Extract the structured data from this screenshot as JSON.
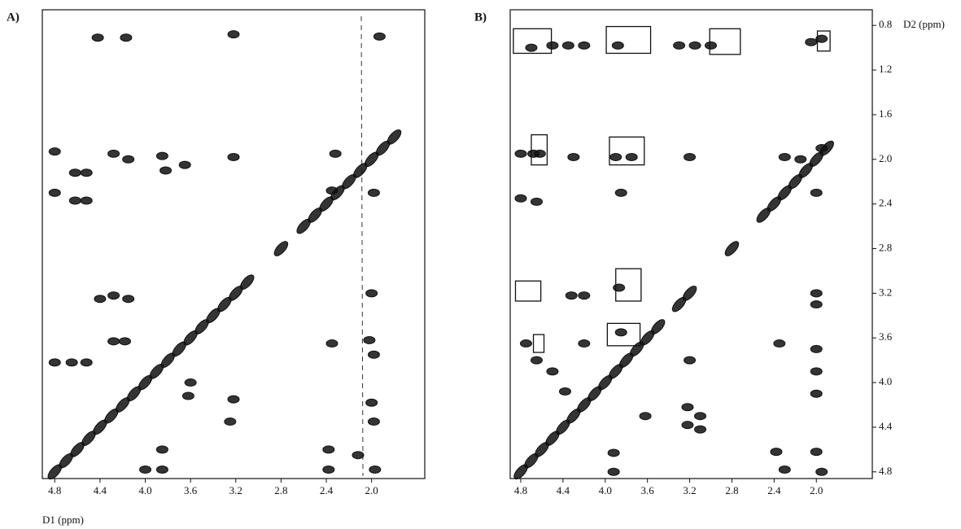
{
  "chart_data": [
    {
      "type": "scatter",
      "title": "A)",
      "x_label": "D1 (ppm)",
      "color": "#111111",
      "xlim": [
        4.91,
        1.53
      ],
      "ylim": [
        0.66,
        4.86
      ],
      "xticks": [
        4.8,
        4.4,
        {
          "value": 4,
          "label": "4.0"
        },
        3.6,
        3.2,
        2.8,
        2.4,
        {
          "value": 2,
          "label": "2.0"
        }
      ],
      "x": [
        4.8,
        4.7,
        4.6,
        4.5,
        4.4,
        4.3,
        4.2,
        4.1,
        4.0,
        3.9,
        3.8,
        3.7,
        3.6,
        3.5,
        3.4,
        3.3,
        3.2,
        3.1,
        2.8,
        2.6,
        2.5,
        2.4,
        2.3,
        2.2,
        2.1,
        2.0,
        1.9,
        1.8,
        4.42,
        4.17,
        3.22,
        1.93,
        4.8,
        4.62,
        4.52,
        4.28,
        4.15,
        3.85,
        3.82,
        3.65,
        3.22,
        2.32,
        4.8,
        4.62,
        4.52,
        2.35,
        1.98,
        4.4,
        4.28,
        4.15,
        2.0,
        4.28,
        4.18,
        2.35,
        2.02,
        1.98,
        4.8,
        4.65,
        4.52,
        3.6,
        3.62,
        3.22,
        3.25,
        2.0,
        1.98,
        3.85,
        3.85,
        4.0,
        2.38,
        2.38,
        2.12,
        1.97
      ],
      "values": [
        4.8,
        4.7,
        4.6,
        4.5,
        4.4,
        4.3,
        4.2,
        4.1,
        4.0,
        3.9,
        3.8,
        3.7,
        3.6,
        3.5,
        3.4,
        3.3,
        3.2,
        3.1,
        2.8,
        2.6,
        2.5,
        2.4,
        2.3,
        2.2,
        2.1,
        2.0,
        1.9,
        1.8,
        0.91,
        0.91,
        0.88,
        0.9,
        1.93,
        2.12,
        2.12,
        1.95,
        2.0,
        1.97,
        2.1,
        2.05,
        1.98,
        1.95,
        2.3,
        2.37,
        2.37,
        2.28,
        2.3,
        3.25,
        3.22,
        3.25,
        3.2,
        3.63,
        3.63,
        3.65,
        3.62,
        3.75,
        3.82,
        3.82,
        3.82,
        4.0,
        4.12,
        4.15,
        4.35,
        4.18,
        4.35,
        4.6,
        4.78,
        4.78,
        4.6,
        4.78,
        4.65,
        4.78
      ]
    },
    {
      "type": "scatter",
      "title": "B)",
      "y_label": "D2 (ppm)",
      "color": "#111111",
      "xlim": [
        4.9,
        1.47
      ],
      "ylim": [
        0.66,
        4.86
      ],
      "xticks": [
        4.8,
        4.4,
        {
          "value": 4,
          "label": "4.0"
        },
        3.6,
        3.2,
        2.8,
        2.4,
        {
          "value": 2,
          "label": "2.0"
        }
      ],
      "yticks": [
        0.8,
        1.2,
        1.6,
        {
          "value": 2,
          "label": "2.0"
        },
        2.4,
        2.8,
        3.2,
        3.6,
        {
          "value": 4,
          "label": "4.0"
        },
        4.4,
        4.8
      ],
      "x": [
        4.8,
        4.7,
        4.6,
        4.5,
        4.4,
        4.3,
        4.2,
        4.1,
        4.0,
        3.9,
        3.8,
        3.7,
        3.6,
        3.5,
        3.3,
        3.2,
        2.8,
        2.5,
        2.4,
        2.3,
        2.2,
        2.1,
        2.0,
        1.9,
        4.7,
        4.5,
        4.35,
        4.2,
        3.88,
        3.3,
        3.15,
        3.0,
        2.05,
        1.95,
        4.8,
        4.68,
        4.62,
        4.3,
        3.9,
        3.75,
        3.2,
        2.3,
        2.15,
        1.95,
        4.8,
        4.65,
        3.85,
        2.0,
        4.32,
        4.2,
        3.87,
        2.0,
        2.0,
        4.75,
        4.65,
        4.2,
        3.85,
        2.35,
        2.0,
        2.0,
        3.2,
        4.5,
        4.38,
        3.62,
        3.22,
        3.22,
        3.1,
        3.1,
        2.0,
        3.92,
        3.92,
        2.38,
        2.3,
        2.0,
        1.95
      ],
      "values": [
        4.8,
        4.7,
        4.6,
        4.5,
        4.4,
        4.3,
        4.2,
        4.1,
        4.0,
        3.9,
        3.8,
        3.7,
        3.6,
        3.5,
        3.3,
        3.2,
        2.8,
        2.5,
        2.4,
        2.3,
        2.2,
        2.1,
        2.0,
        1.9,
        1.0,
        0.98,
        0.98,
        0.98,
        0.98,
        0.98,
        0.98,
        0.98,
        0.95,
        0.92,
        1.95,
        1.95,
        1.95,
        1.98,
        1.98,
        1.98,
        1.98,
        1.98,
        2.0,
        1.9,
        2.35,
        2.38,
        2.3,
        2.3,
        3.22,
        3.22,
        3.15,
        3.2,
        3.3,
        3.65,
        3.8,
        3.65,
        3.55,
        3.65,
        3.7,
        3.9,
        3.8,
        3.9,
        4.08,
        4.3,
        4.22,
        4.38,
        4.3,
        4.42,
        4.1,
        4.63,
        4.8,
        4.62,
        4.78,
        4.62,
        4.8
      ],
      "boxes": [
        {
          "x": [
            4.87,
            4.51
          ],
          "y": [
            0.83,
            1.05
          ]
        },
        {
          "x": [
            3.99,
            3.57
          ],
          "y": [
            0.81,
            1.05
          ]
        },
        {
          "x": [
            3.01,
            2.72
          ],
          "y": [
            0.83,
            1.06
          ]
        },
        {
          "x": [
            1.99,
            1.87
          ],
          "y": [
            0.85,
            1.03
          ]
        },
        {
          "x": [
            4.7,
            4.55
          ],
          "y": [
            1.78,
            2.05
          ]
        },
        {
          "x": [
            3.96,
            3.63
          ],
          "y": [
            1.8,
            2.05
          ]
        },
        {
          "x": [
            4.85,
            4.61
          ],
          "y": [
            3.09,
            3.27
          ]
        },
        {
          "x": [
            3.9,
            3.66
          ],
          "y": [
            2.98,
            3.27
          ]
        },
        {
          "x": [
            4.68,
            4.58
          ],
          "y": [
            3.57,
            3.73
          ]
        },
        {
          "x": [
            3.98,
            3.67
          ],
          "y": [
            3.47,
            3.67
          ]
        }
      ]
    }
  ]
}
